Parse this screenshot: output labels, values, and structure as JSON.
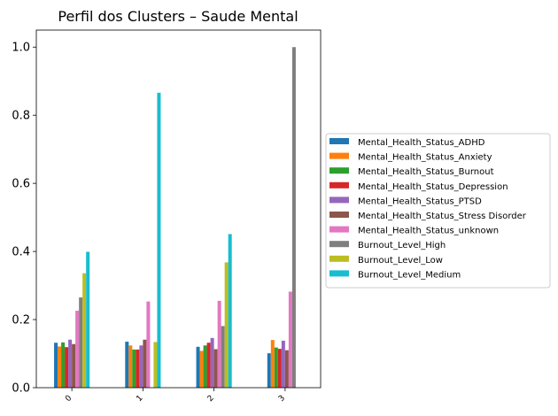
{
  "chart_data": {
    "type": "bar",
    "title": "Perfil dos Clusters – Saude Mental",
    "xlabel": "",
    "ylabel": "",
    "categories": [
      "0",
      "1",
      "2",
      "3"
    ],
    "ylim": [
      0,
      1.05
    ],
    "yticks": [
      "0.0",
      "0.2",
      "0.4",
      "0.6",
      "0.8",
      "1.0"
    ],
    "legend_position": "right",
    "series": [
      {
        "name": "Mental_Health_Status_ADHD",
        "color": "#1f77b4",
        "values": [
          0.132,
          0.135,
          0.12,
          0.101
        ]
      },
      {
        "name": "Mental_Health_Status_Anxiety",
        "color": "#ff7f0e",
        "values": [
          0.121,
          0.124,
          0.108,
          0.14
        ]
      },
      {
        "name": "Mental_Health_Status_Burnout",
        "color": "#2ca02c",
        "values": [
          0.133,
          0.112,
          0.124,
          0.118
        ]
      },
      {
        "name": "Mental_Health_Status_Depression",
        "color": "#d62728",
        "values": [
          0.119,
          0.112,
          0.132,
          0.114
        ]
      },
      {
        "name": "Mental_Health_Status_PTSD",
        "color": "#9467bd",
        "values": [
          0.141,
          0.124,
          0.146,
          0.138
        ]
      },
      {
        "name": "Mental_Health_Status_Stress Disorder",
        "color": "#8c564b",
        "values": [
          0.128,
          0.141,
          0.113,
          0.11
        ]
      },
      {
        "name": "Mental_Health_Status_unknown",
        "color": "#e377c2",
        "values": [
          0.226,
          0.253,
          0.255,
          0.282
        ]
      },
      {
        "name": "Burnout_Level_High",
        "color": "#7f7f7f",
        "values": [
          0.265,
          0.0,
          0.181,
          1.0
        ]
      },
      {
        "name": "Burnout_Level_Low",
        "color": "#bcbd22",
        "values": [
          0.336,
          0.134,
          0.368,
          0.0
        ]
      },
      {
        "name": "Burnout_Level_Medium",
        "color": "#17becf",
        "values": [
          0.399,
          0.866,
          0.451,
          0.0
        ]
      }
    ]
  }
}
